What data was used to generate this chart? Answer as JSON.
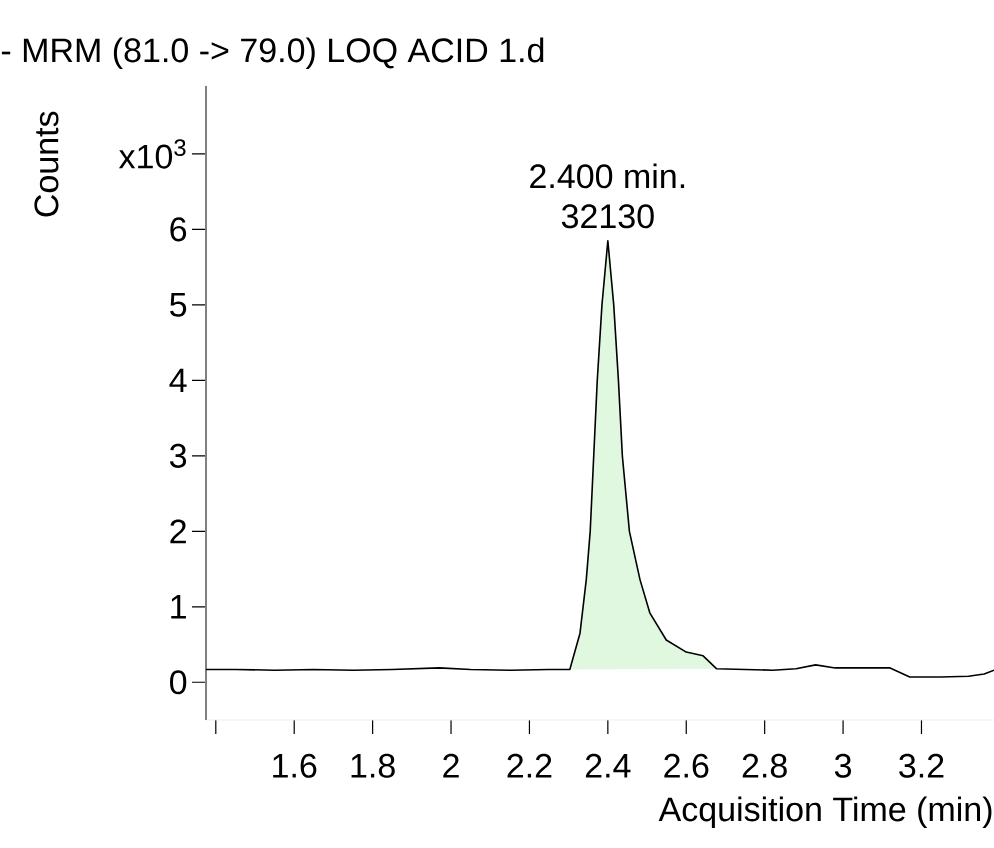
{
  "chart_data": {
    "type": "line",
    "title": "- MRM (81.0 -> 79.0) LOQ ACID 1.d",
    "xlabel": "Acquisition Time (min)",
    "ylabel": "Counts",
    "annotations": [
      {
        "text": "2.400 min.",
        "x": 2.4,
        "y": 5.85
      },
      {
        "text": "32130",
        "x": 2.4,
        "y": 5.85
      }
    ],
    "xlim": [
      1.375,
      3.385
    ],
    "ylim": [
      -0.5,
      7.9
    ],
    "xticks": [
      {
        "value": 1.4,
        "label": null
      },
      1.6,
      1.8,
      2,
      2.2,
      2.4,
      2.6,
      2.8,
      3,
      3.2
    ],
    "yticks": [
      0,
      1,
      2,
      3,
      4,
      5,
      6,
      {
        "value": 7,
        "label": "x10$^{3}$"
      }
    ],
    "series": [
      {
        "type": "line",
        "color": "#000000",
        "x": [
          1.375,
          1.45,
          1.55,
          1.65,
          1.75,
          1.85,
          1.97,
          2.05,
          2.15,
          2.25,
          2.303,
          2.329,
          2.345,
          2.355,
          2.364,
          2.373,
          2.385,
          2.4,
          2.415,
          2.427,
          2.437,
          2.455,
          2.482,
          2.507,
          2.549,
          2.6,
          2.643,
          2.677,
          2.75,
          2.82,
          2.88,
          2.93,
          2.98,
          3.05,
          3.12,
          3.17,
          3.25,
          3.32,
          3.36,
          3.385
        ],
        "values": [
          0.17,
          0.17,
          0.16,
          0.17,
          0.16,
          0.17,
          0.19,
          0.17,
          0.16,
          0.17,
          0.17,
          0.65,
          1.36,
          2.0,
          3.0,
          4.0,
          5.0,
          5.85,
          5.0,
          4.0,
          3.0,
          2.0,
          1.36,
          0.92,
          0.56,
          0.4,
          0.35,
          0.18,
          0.17,
          0.16,
          0.18,
          0.23,
          0.19,
          0.19,
          0.19,
          0.07,
          0.07,
          0.08,
          0.11,
          0.16
        ]
      },
      {
        "type": "area",
        "color": "#e0f8e0",
        "x": [
          2.303,
          2.329,
          2.345,
          2.355,
          2.364,
          2.373,
          2.385,
          2.4,
          2.415,
          2.427,
          2.437,
          2.455,
          2.482,
          2.507,
          2.549,
          2.6,
          2.643,
          2.677
        ],
        "values": [
          0.17,
          0.65,
          1.36,
          2.0,
          3.0,
          4.0,
          5.0,
          5.85,
          5.0,
          4.0,
          3.0,
          2.0,
          1.36,
          0.92,
          0.56,
          0.4,
          0.35,
          0.18
        ]
      }
    ]
  }
}
